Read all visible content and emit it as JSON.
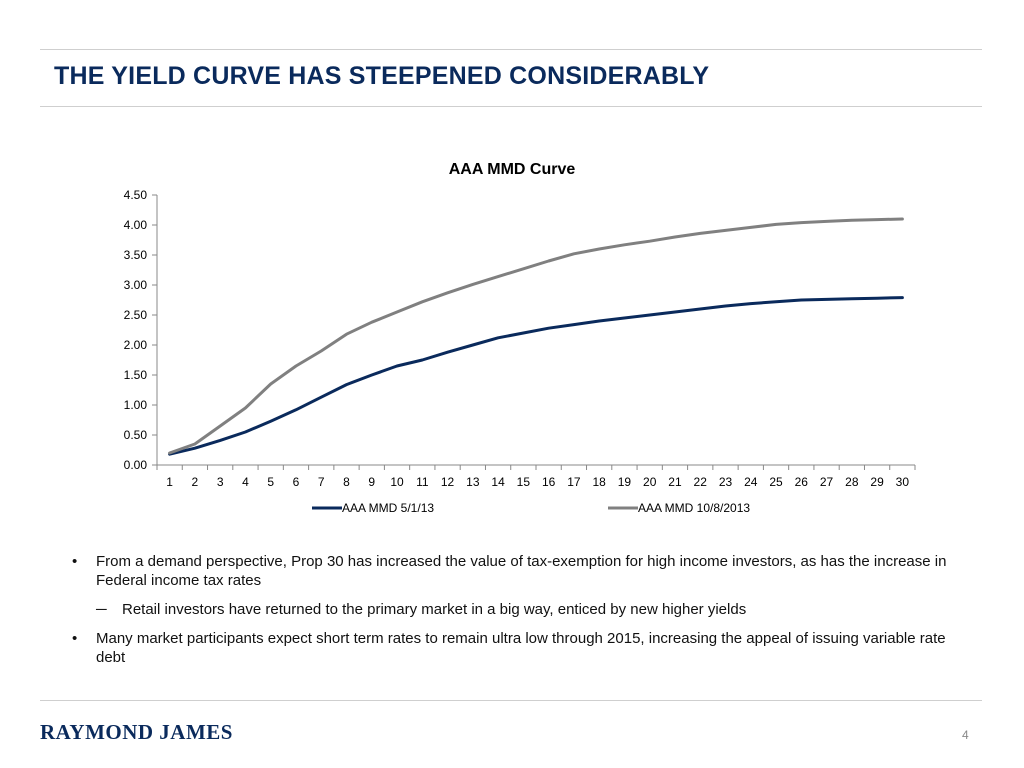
{
  "slide": {
    "title": "THE YIELD CURVE HAS STEEPENED CONSIDERABLY",
    "page_number": "4",
    "logo_text": "RAYMOND JAMES"
  },
  "bullets": [
    {
      "level": 1,
      "text": "From a demand perspective, Prop 30 has increased the value of tax-exemption for high income investors, as has the increase in Federal income tax rates"
    },
    {
      "level": 2,
      "text": "Retail investors have returned to the primary market in a big way, enticed by new higher yields"
    },
    {
      "level": 1,
      "text": "Many market participants expect short term rates to remain ultra low through 2015, increasing the appeal of issuing variable rate debt"
    }
  ],
  "markers": {
    "bullet": "•",
    "dash": "─"
  },
  "chart_data": {
    "type": "line",
    "title": "AAA MMD Curve",
    "xlabel": "",
    "ylabel": "",
    "x": [
      "1",
      "2",
      "3",
      "4",
      "5",
      "6",
      "7",
      "8",
      "9",
      "10",
      "11",
      "12",
      "13",
      "14",
      "15",
      "16",
      "17",
      "18",
      "19",
      "20",
      "21",
      "22",
      "23",
      "24",
      "25",
      "26",
      "27",
      "28",
      "29",
      "30"
    ],
    "ylim": [
      0,
      4.5
    ],
    "yticks": [
      "0.00",
      "0.50",
      "1.00",
      "1.50",
      "2.00",
      "2.50",
      "3.00",
      "3.50",
      "4.00",
      "4.50"
    ],
    "grid": false,
    "legend_position": "bottom",
    "series": [
      {
        "name": "AAA MMD 5/1/13",
        "color": "#0a2a5c",
        "values": [
          0.18,
          0.28,
          0.41,
          0.55,
          0.73,
          0.92,
          1.13,
          1.34,
          1.5,
          1.65,
          1.75,
          1.88,
          2.0,
          2.12,
          2.2,
          2.28,
          2.34,
          2.4,
          2.45,
          2.5,
          2.55,
          2.6,
          2.65,
          2.69,
          2.72,
          2.75,
          2.76,
          2.77,
          2.78,
          2.79
        ]
      },
      {
        "name": "AAA MMD 10/8/2013",
        "color": "#808080",
        "values": [
          0.2,
          0.35,
          0.65,
          0.95,
          1.35,
          1.65,
          1.9,
          2.18,
          2.38,
          2.55,
          2.72,
          2.87,
          3.01,
          3.14,
          3.27,
          3.4,
          3.52,
          3.6,
          3.67,
          3.73,
          3.8,
          3.86,
          3.91,
          3.96,
          4.01,
          4.04,
          4.06,
          4.08,
          4.09,
          4.1
        ]
      }
    ]
  }
}
